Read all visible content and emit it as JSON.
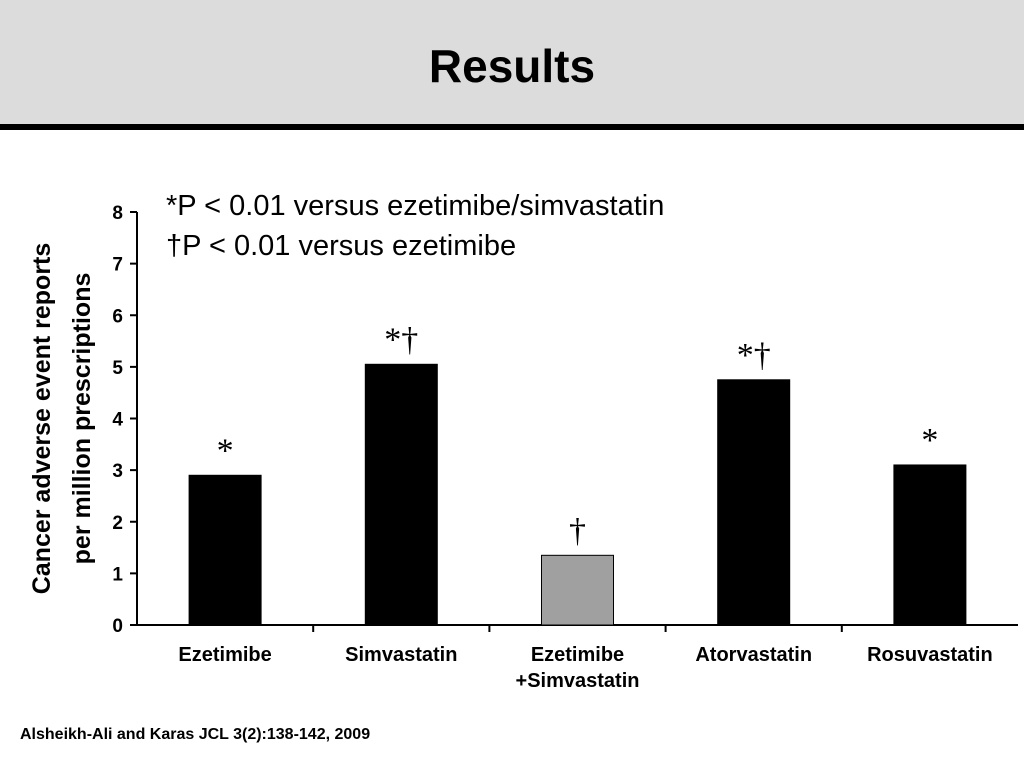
{
  "slide": {
    "title": "Results",
    "citation": "Alsheikh-Ali and Karas JCL 3(2):138-142, 2009"
  },
  "colors": {
    "header_bg": "#dcdcdc",
    "bar_black": "#000000",
    "bar_gray": "#a0a0a0"
  },
  "chart_data": {
    "type": "bar",
    "categories": [
      "Ezetimibe",
      "Simvastatin",
      "Ezetimibe\n+Simvastatin",
      "Atorvastatin",
      "Rosuvastatin"
    ],
    "values": [
      2.9,
      5.05,
      1.35,
      4.75,
      3.1
    ],
    "bar_colors": [
      "#000000",
      "#000000",
      "#a0a0a0",
      "#000000",
      "#000000"
    ],
    "significance_marks": [
      "*",
      "*†",
      "†",
      "*†",
      "*"
    ],
    "ylabel": "Cancer adverse event reports\nper million prescriptions",
    "ylim": [
      0,
      8
    ],
    "yticks": [
      0,
      1,
      2,
      3,
      4,
      5,
      6,
      7,
      8
    ],
    "notes": [
      "*P < 0.01 versus ezetimibe/simvastatin",
      "†P < 0.01 versus ezetimibe"
    ],
    "grid": false
  }
}
